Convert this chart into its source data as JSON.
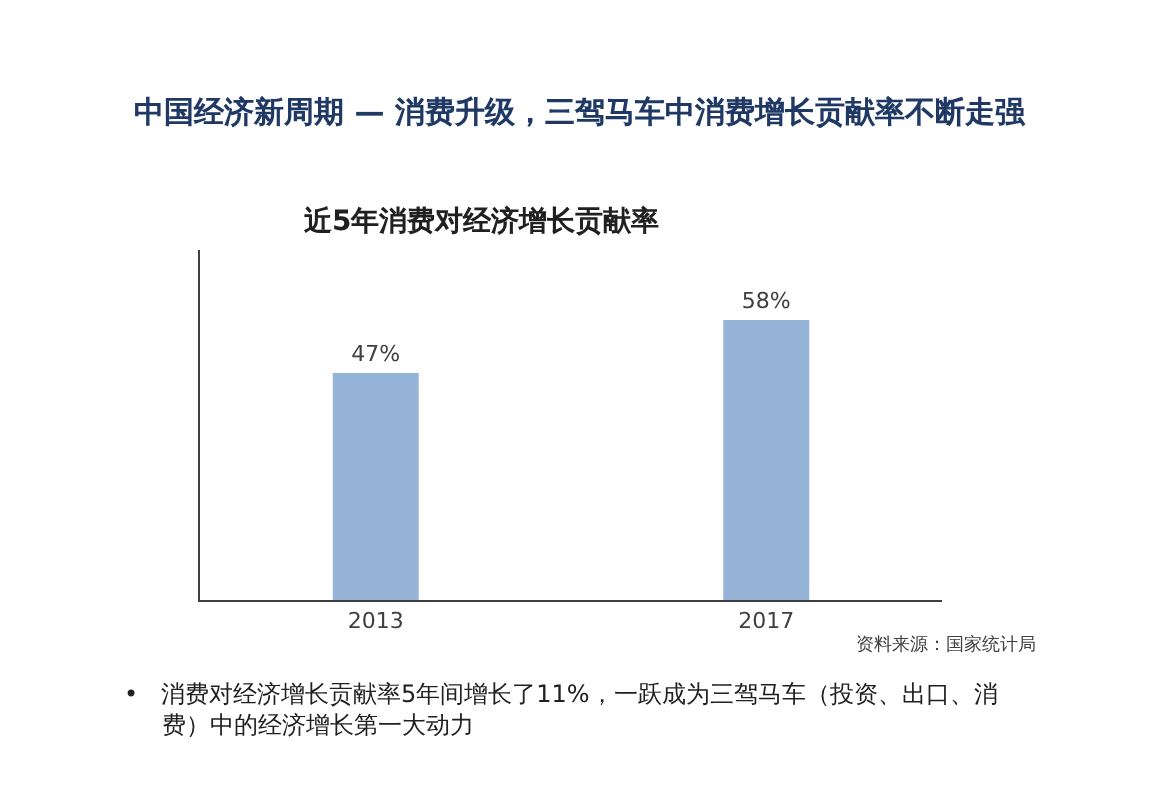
{
  "chart_data": {
    "type": "bar",
    "title": "中国经济新周期 — 消费升级，三驾马车中消费增长贡献率不断走强",
    "subtitle": "近5年消费对经济增长贡献率",
    "categories": [
      "2013",
      "2017"
    ],
    "values": [
      47,
      58
    ],
    "value_labels": [
      "47%",
      "58%"
    ],
    "color": "#95b3d7",
    "legend": false,
    "annotations": [
      "资料来源：国家统计局",
      "•   消费对经济增长贡献率5年间增长了11%，一跃成为三驾马车（投资、出口、消费）中的经济增长第一大动力"
    ]
  }
}
